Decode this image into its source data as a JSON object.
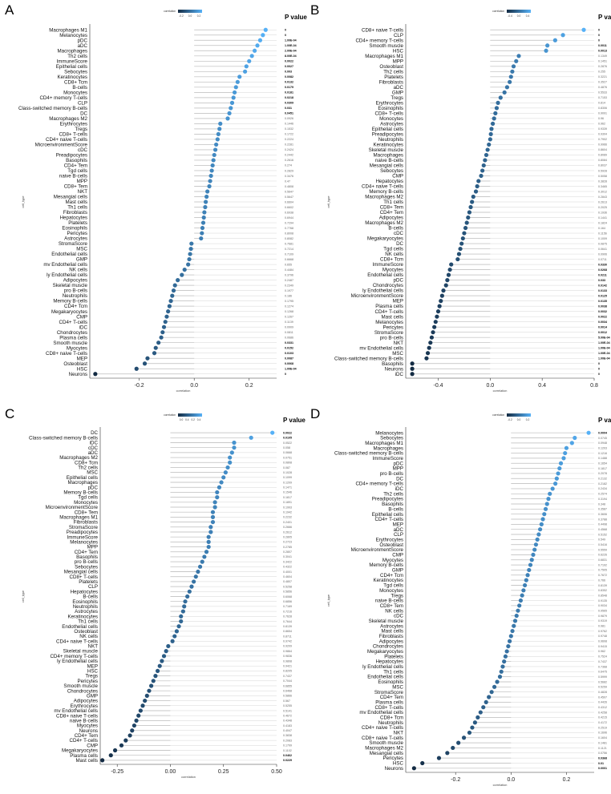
{
  "color_scale": {
    "low": "#132b43",
    "high": "#56b1f7"
  },
  "chart_data": [
    {
      "panel": "A",
      "type": "lollipop",
      "xlabel": "correlation",
      "ylabel": "cell_type",
      "xlim": [
        -0.38,
        0.3
      ],
      "xticks": [
        -0.4,
        -0.2,
        0.0,
        0.2
      ],
      "ytitle_right": "P value",
      "legend_title": "correlation",
      "legend_ticks": [
        "-0.2",
        "0.0",
        "0.2"
      ],
      "cells": [
        "Macrophages M1",
        "Melanocytes",
        "pDC",
        "aDC",
        "Macrophages",
        "Th2 cells",
        "ImmuneScore",
        "Epithelial cells",
        "Sebocytes",
        "Keratinocytes",
        "CD8+ Tcm",
        "B-cells",
        "Monocytes",
        "CD4+ memory T-cells",
        "CLP",
        "Class-switched memory B-cells",
        "DC",
        "Macrophages M2",
        "Erythrocytes",
        "Tregs",
        "CD8+ T-cells",
        "CD4+ naive T-cells",
        "MicroenvironmentScore",
        "cDC",
        "Preadipocytes",
        "Basophils",
        "CD4+ Tem",
        "Tgd cells",
        "naive B-cells",
        "MPP",
        "CD8+ Tem",
        "NKT",
        "Mesangial cells",
        "Mast cells",
        "Th1 cells",
        "Fibroblasts",
        "Hepatocytes",
        "Platelets",
        "Eosinophils",
        "Pericytes",
        "Astrocytes",
        "StromaScore",
        "MSC",
        "Endothelial cells",
        "GMP",
        "mv Endothelial cells",
        "NK cells",
        "ly Endothelial cells",
        "Adipocytes",
        "Skeletal muscle",
        "pro B-cells",
        "Neutrophils",
        "Memory B-cells",
        "CD4+ Tcm",
        "Megakaryocytes",
        "CMP",
        "CD4+ T-cells",
        "iDC",
        "Chondrocytes",
        "Plasma cells",
        "Smooth muscle",
        "Myocytes",
        "CD8+ naive T-cells",
        "MEP",
        "Osteoblast",
        "HSC",
        "Neurons"
      ],
      "values": [
        0.26,
        0.25,
        0.24,
        0.23,
        0.22,
        0.21,
        0.2,
        0.19,
        0.185,
        0.165,
        0.158,
        0.152,
        0.147,
        0.143,
        0.138,
        0.133,
        0.128,
        0.122,
        0.095,
        0.092,
        0.088,
        0.085,
        0.08,
        0.077,
        0.073,
        0.07,
        0.067,
        0.064,
        0.061,
        0.058,
        0.055,
        0.048,
        0.045,
        0.042,
        0.04,
        0.037,
        0.035,
        0.033,
        0.03,
        0.028,
        0.025,
        -0.01,
        -0.012,
        -0.015,
        -0.018,
        -0.022,
        -0.035,
        -0.045,
        -0.06,
        -0.07,
        -0.075,
        -0.08,
        -0.085,
        -0.09,
        -0.095,
        -0.1,
        -0.105,
        -0.11,
        -0.115,
        -0.12,
        -0.13,
        -0.14,
        -0.145,
        -0.17,
        -0.18,
        -0.21,
        -0.36
      ],
      "pvalues": [
        "0",
        "0",
        "1.00E-04",
        "1.00E-04",
        "2.00E-04",
        "8.00E-04",
        "0.0022",
        "0.0027",
        "0.003",
        "0.0082",
        "0.0132",
        "0.0179",
        "0.0181",
        "0.0218",
        "0.0309",
        "0.031",
        "0.0451",
        "0.0926",
        "0.1446",
        "0.1532",
        "0.1722",
        "0.2224",
        "0.2281",
        "0.2424",
        "0.2442",
        "0.2616",
        "0.274",
        "0.2829",
        "0.3476",
        "0.47",
        "0.4808",
        "0.5647",
        "0.5647",
        "0.6604",
        "0.6602",
        "0.6938",
        "0.6944",
        "0.7294",
        "0.7768",
        "0.8008",
        "0.8082",
        "0.7681",
        "0.7214",
        "0.7109",
        "0.6668",
        "0.655",
        "0.4484",
        "0.3796",
        "0.2487",
        "0.2349",
        "0.1977",
        "0.186",
        "0.1795",
        "0.1274",
        "0.1268",
        "0.1267",
        "0.1139",
        "0.0909",
        "0.0811",
        "0.0686",
        "0.0331",
        "0.0152",
        "0.0103",
        "0.0087",
        "0.0068",
        "1.00E-04",
        "0"
      ]
    },
    {
      "panel": "B",
      "type": "lollipop",
      "xlabel": "correlation",
      "ylabel": "cell_type",
      "xlim": [
        -0.65,
        0.8
      ],
      "xticks": [
        -0.4,
        0.0,
        0.4,
        0.8
      ],
      "tick_labels": [
        "-0.4",
        "0.0",
        "0.4",
        "0.8"
      ],
      "ytitle_right": "P value",
      "legend_title": "correlation",
      "legend_ticks": [
        "-0.4",
        "0.0",
        "0.4"
      ],
      "cells": [
        "CD8+ naive T-cells",
        "CLP",
        "CD4+ memory T-cells",
        "Smooth muscle",
        "HSC",
        "Macrophages M1",
        "MPP",
        "Osteoblast",
        "Th2 cells",
        "Platelets",
        "Fibroblasts",
        "aDC",
        "GMP",
        "Tregs",
        "Erythrocytes",
        "Eosinophils",
        "CD8+ T-cells",
        "Monocytes",
        "Astrocytes",
        "Epithelial cells",
        "Preadipocytes",
        "Neutrophils",
        "Keratinocytes",
        "Skeletal muscle",
        "Macrophages",
        "naive B-cells",
        "Mesangial cells",
        "Sebocytes",
        "CMP",
        "Hepatocytes",
        "CD4+ naive T-cells",
        "Memory B-cells",
        "Macrophages M2",
        "Th1 cells",
        "CD8+ Tem",
        "CD4+ Tem",
        "Adipocytes",
        "Macrophages M2",
        "B-cells",
        "cDC",
        "Megakaryocytes",
        "DC",
        "Tgd cells",
        "NK cells",
        "CD8+ Tcm",
        "ImmuneScore",
        "Myocytes",
        "Endothelial cells",
        "pDC",
        "Chondrocytes",
        "ly Endothelial cells",
        "MicroenvironmentScore",
        "MEP",
        "Plasma cells",
        "CD4+ T-cells",
        "Mast cells",
        "Melanocytes",
        "Pericytes",
        "StromaScore",
        "pro B-cells",
        "NKT",
        "mv Endothelial cells",
        "MSC",
        "Class-switched memory B-cells",
        "Basophils",
        "Neurons",
        "iDC"
      ],
      "values": [
        0.72,
        0.56,
        0.5,
        0.44,
        0.43,
        0.22,
        0.2,
        0.18,
        0.17,
        0.16,
        0.15,
        0.13,
        0.11,
        0.08,
        0.06,
        0.05,
        0.04,
        0.03,
        0.02,
        0.01,
        0.005,
        0.0,
        -0.01,
        -0.02,
        -0.03,
        -0.04,
        -0.05,
        -0.06,
        -0.07,
        -0.09,
        -0.1,
        -0.11,
        -0.13,
        -0.14,
        -0.15,
        -0.16,
        -0.17,
        -0.18,
        -0.19,
        -0.2,
        -0.21,
        -0.22,
        -0.23,
        -0.24,
        -0.25,
        -0.3,
        -0.31,
        -0.32,
        -0.33,
        -0.34,
        -0.36,
        -0.37,
        -0.38,
        -0.39,
        -0.4,
        -0.41,
        -0.42,
        -0.43,
        -0.44,
        -0.45,
        -0.46,
        -0.47,
        -0.48,
        -0.49,
        -0.6,
        -0.6,
        -0.6
      ],
      "pvalues": [
        "0",
        "0",
        "0",
        "0.0011",
        "0.0013",
        "0.1349",
        "0.1451",
        "0.2876",
        "0.255",
        "0.3221",
        "0.3527",
        "0.4876",
        "0.5533",
        "0.7153",
        "0.814",
        "0.8306",
        "0.9091",
        "0.96",
        "0.962",
        "0.9339",
        "0.9304",
        "0.7902",
        "0.9966",
        "0.8604",
        "0.8089",
        "0.8084",
        "0.8037",
        "0.5928",
        "0.5058",
        "0.3828",
        "0.3465",
        "0.3012",
        "0.2843",
        "0.2613",
        "0.2025",
        "0.1936",
        "0.1441",
        "0.1824",
        "0.164",
        "0.1156",
        "0.1009",
        "0.0875",
        "0.0641",
        "0.0906",
        "0.0711",
        "0.0330",
        "0.0268",
        "0.0211",
        "0.033",
        "0.0142",
        "0.0133",
        "0.0125",
        "0.0135",
        "0.0038",
        "0.0032",
        "0.0022",
        "0.0034",
        "0.0014",
        "0.0012",
        "5.00E-04",
        "1.00E-04",
        "1.00E-04",
        "1.00E-04",
        "1.00E-04",
        "0",
        "0",
        "0"
      ]
    },
    {
      "panel": "C",
      "type": "lollipop",
      "xlabel": "correlation",
      "ylabel": "cell_type",
      "xlim": [
        -0.33,
        0.5
      ],
      "xticks": [
        -0.25,
        0.0,
        0.25,
        0.5
      ],
      "tick_labels": [
        "-0.25",
        "0.00",
        "0.25",
        "0.50"
      ],
      "ytitle_right": "P value",
      "legend_title": "correlation",
      "legend_ticks": [
        "0.0",
        "0.4",
        "0.2",
        "0.4"
      ],
      "cells": [
        "DC",
        "Class-switched memory B-cells",
        "iDC",
        "cDC",
        "aDC",
        "Macrophages M2",
        "CD8+ Tcm",
        "Th2 cells",
        "MSC",
        "Epithelial cells",
        "Macrophages",
        "pDC",
        "Memory B-cells",
        "Tgd cells",
        "Monocytes",
        "MicroenvironmentScore",
        "CD8+ Tem",
        "Macrophages M1",
        "Fibroblasts",
        "StromaScore",
        "Preadipocytes",
        "ImmuneScore",
        "Melanocytes",
        "MPP",
        "CD4+ Tem",
        "Basophils",
        "pro B-cells",
        "Sebocytes",
        "Mesangial cells",
        "CD8+ T-cells",
        "Platelets",
        "CLP",
        "Hepatocytes",
        "B-cells",
        "Eosinophils",
        "Neutrophils",
        "Astrocytes",
        "Keratinocytes",
        "Th1 cells",
        "Endothelial cells",
        "Osteoblast",
        "NK cells",
        "CD4+ naive T-cells",
        "NKT",
        "Skeletal muscle",
        "CD4+ memory T-cells",
        "ly Endothelial cells",
        "MEP",
        "HSC",
        "Tregs",
        "Pericytes",
        "Smooth muscle",
        "Chondrocytes",
        "GMP",
        "Adipocytes",
        "Erythrocytes",
        "mv Endothelial cells",
        "CD8+ naive T-cells",
        "naive B-cells",
        "Myocytes",
        "Neurons",
        "CD4+ Tem",
        "CD4+ T-cells",
        "CMP",
        "Megakaryocytes",
        "Plasma cells",
        "Mast cells"
      ],
      "values": [
        0.48,
        0.38,
        0.3,
        0.3,
        0.29,
        0.28,
        0.28,
        0.27,
        0.26,
        0.25,
        0.24,
        0.23,
        0.22,
        0.22,
        0.21,
        0.21,
        0.2,
        0.2,
        0.2,
        0.19,
        0.19,
        0.18,
        0.18,
        0.18,
        0.17,
        0.16,
        0.15,
        0.14,
        0.13,
        0.12,
        0.11,
        0.1,
        0.09,
        0.08,
        0.07,
        0.065,
        0.06,
        0.05,
        0.05,
        0.04,
        0.03,
        0.02,
        0.01,
        -0.01,
        -0.02,
        -0.03,
        -0.04,
        -0.05,
        -0.06,
        -0.07,
        -0.08,
        -0.09,
        -0.1,
        -0.11,
        -0.12,
        -0.13,
        -0.14,
        -0.15,
        -0.16,
        -0.17,
        -0.18,
        -0.19,
        -0.21,
        -0.23,
        -0.26,
        -0.28,
        -0.32
      ],
      "pvalues": [
        "0.0022",
        "0.0105",
        "0.0522",
        "0.058",
        "0.0668",
        "0.0751",
        "0.0808",
        "0.087",
        "0.1028",
        "0.1099",
        "0.1209",
        "0.1471",
        "0.1546",
        "0.1817",
        "0.1891",
        "0.1993",
        "0.1942",
        "0.2232",
        "0.2401",
        "0.2666",
        "0.2612",
        "0.2805",
        "0.2723",
        "0.2785",
        "0.2807",
        "0.3041",
        "0.3422",
        "0.4322",
        "0.4001",
        "0.4604",
        "0.4807",
        "0.5258",
        "0.5856",
        "0.6068",
        "0.6856",
        "0.7169",
        "0.7216",
        "0.7628",
        "0.7644",
        "0.8139",
        "0.8654",
        "0.8711",
        "0.9742",
        "0.9209",
        "0.9864",
        "0.9836",
        "0.9808",
        "0.9421",
        "0.8205",
        "0.7437",
        "0.7044",
        "0.6855",
        "0.6468",
        "0.5866",
        "0.567",
        "0.5255",
        "0.5141",
        "0.4672",
        "0.4348",
        "0.4183",
        "0.4047",
        "0.3838",
        "0.2083",
        "0.1799",
        "0.1102",
        "0.0462",
        "0.0229"
      ]
    },
    {
      "panel": "D",
      "type": "lollipop",
      "xlabel": "correlation",
      "ylabel": "cell_type",
      "xlim": [
        -0.38,
        0.3
      ],
      "xticks": [
        -0.2,
        0.0,
        0.2
      ],
      "tick_labels": [
        "-0.2",
        "0.0",
        "0.2"
      ],
      "ytitle_right": "P value",
      "legend_title": "correlation",
      "legend_ticks": [
        "-0.2",
        "0.0",
        "0.2"
      ],
      "cells": [
        "Melanocytes",
        "Sebocytes",
        "Macrophages M1",
        "Macrophages",
        "Class-switched memory B-cells",
        "ImmuneScore",
        "pDC",
        "MPP",
        "pro B-cells",
        "DC",
        "CD4+ memory T-cells",
        "iDC",
        "Th2 cells",
        "Preadipocytes",
        "Basophils",
        "B-cells",
        "Epithelial cells",
        "CD4+ T-cells",
        "MEP",
        "aDC",
        "CLP",
        "Erythrocytes",
        "Osteoblast",
        "MicroenvironmentScore",
        "CMP",
        "Myocytes",
        "Memory B-cells",
        "GMP",
        "CD4+ Tcm",
        "Keratinocytes",
        "Tgd cells",
        "Monocytes",
        "Tregs",
        "naive B-cells",
        "CD8+ Tem",
        "NK cells",
        "cDC",
        "Skeletal muscle",
        "Astrocytes",
        "Mast cells",
        "Fibroblasts",
        "Adipocytes",
        "Chondrocytes",
        "Megakaryocytes",
        "Platelets",
        "Hepatocytes",
        "ly Endothelial cells",
        "Th1 cells",
        "Endothelial cells",
        "Eosinophils",
        "MSC",
        "StromaScore",
        "CD4+ Tem",
        "Plasma cells",
        "CD8+ T-cells",
        "mv Endothelial cells",
        "CD8+ Tcm",
        "Neutrophils",
        "CD4+ naive T-cells",
        "NKT",
        "CD8+ naive T-cells",
        "Smooth muscle",
        "Macrophages M2",
        "Mesangial cells",
        "Pericytes",
        "HSC",
        "Neurons"
      ],
      "values": [
        0.28,
        0.23,
        0.22,
        0.2,
        0.195,
        0.19,
        0.18,
        0.175,
        0.17,
        0.165,
        0.16,
        0.15,
        0.14,
        0.135,
        0.13,
        0.125,
        0.12,
        0.115,
        0.11,
        0.105,
        0.1,
        0.095,
        0.09,
        0.085,
        0.08,
        0.075,
        0.07,
        0.065,
        0.06,
        0.055,
        0.05,
        0.045,
        0.04,
        0.035,
        0.03,
        0.025,
        0.02,
        0.015,
        0.01,
        0.005,
        0.0,
        -0.005,
        -0.01,
        -0.015,
        -0.02,
        -0.025,
        -0.03,
        -0.035,
        -0.04,
        -0.05,
        -0.06,
        -0.07,
        -0.08,
        -0.09,
        -0.1,
        -0.11,
        -0.12,
        -0.13,
        -0.14,
        -0.15,
        -0.17,
        -0.19,
        -0.21,
        -0.23,
        -0.26,
        -0.32,
        -0.35
      ],
      "pvalues": [
        "0.0004",
        "0.0745",
        "0.0948",
        "0.1203",
        "0.1216",
        "0.1488",
        "0.1654",
        "0.1817",
        "0.2078",
        "0.2132",
        "0.2182",
        "0.2434",
        "0.2574",
        "0.3194",
        "0.348",
        "0.3587",
        "0.3606",
        "0.3788",
        "0.4498",
        "0.4568",
        "0.5152",
        "0.549",
        "0.5416",
        "0.5559",
        "0.6226",
        "0.6831",
        "0.7192",
        "0.7505",
        "0.7672",
        "0.766",
        "0.8139",
        "0.8352",
        "0.8548",
        "0.9135",
        "0.9034",
        "0.9565",
        "0.9879",
        "0.9319",
        "0.981",
        "0.9762",
        "0.9748",
        "0.9608",
        "0.9415",
        "0.962",
        "0.7524",
        "0.7437",
        "0.7368",
        "0.6475",
        "0.5999",
        "0.5682",
        "0.5259",
        "0.4828",
        "0.4507",
        "0.4426",
        "0.4312",
        "0.4258",
        "0.4215",
        "0.4172",
        "0.2519",
        "0.1696",
        "0.1604",
        "0.1481",
        "0.1121",
        "0.0756",
        "0.0368",
        "0.01",
        "0.0001"
      ]
    }
  ]
}
